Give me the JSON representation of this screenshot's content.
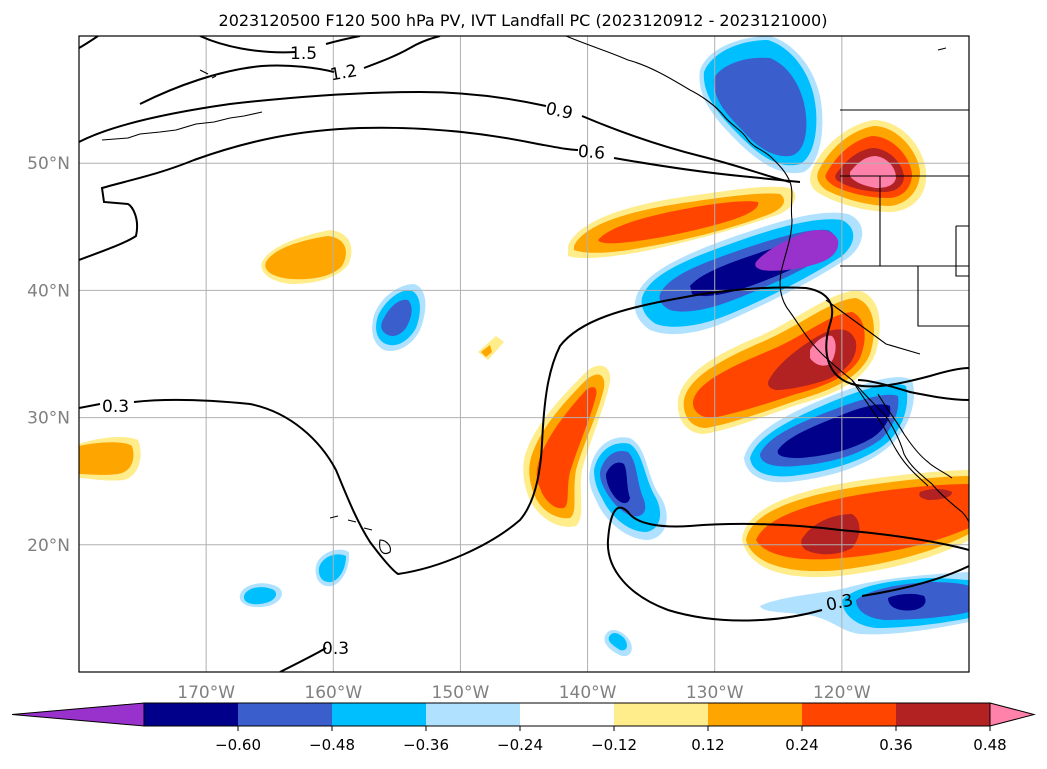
{
  "chart_data": {
    "type": "heatmap",
    "title": "2023120500 F120 500 hPa PV, IVT Landfall PC (2023120912 - 2023121000)",
    "x_axis": {
      "ticks": [
        -170,
        -160,
        -150,
        -140,
        -130,
        -120
      ],
      "tick_labels": [
        "170°W",
        "160°W",
        "150°W",
        "140°W",
        "130°W",
        "120°W"
      ],
      "range": [
        -180,
        -110
      ]
    },
    "y_axis": {
      "ticks": [
        20,
        30,
        40,
        50
      ],
      "tick_labels": [
        "20°N",
        "30°N",
        "40°N",
        "50°N"
      ],
      "range": [
        10,
        60
      ]
    },
    "grid": true,
    "colorbar": {
      "orientation": "horizontal",
      "extend": "both",
      "levels": [
        -0.6,
        -0.48,
        -0.36,
        -0.24,
        -0.12,
        0.12,
        0.24,
        0.36,
        0.48,
        0.6
      ],
      "tick_labels": [
        "−0.60",
        "−0.48",
        "−0.36",
        "−0.24",
        "−0.12",
        "0.12",
        "0.24",
        "0.36",
        "0.48",
        "0.60"
      ],
      "colors": [
        "#9932cc",
        "#00008b",
        "#3a5fcd",
        "#00bfff",
        "#b0e2ff",
        "#ffffff",
        "#ffec8b",
        "#ffa500",
        "#ff4500",
        "#b22222",
        "#ff82ab"
      ]
    },
    "contour_labels": [
      {
        "value": 1.5,
        "text": "1.5"
      },
      {
        "value": 1.2,
        "text": "1.2"
      },
      {
        "value": 0.9,
        "text": "0.9"
      },
      {
        "value": 0.6,
        "text": "0.6"
      },
      {
        "value": 0.3,
        "text": "0.3"
      },
      {
        "value": 0.3,
        "text": "0.3"
      },
      {
        "value": 0.3,
        "text": "0.3"
      }
    ],
    "anomaly_features": [
      {
        "lon": -168,
        "lat": 15.9,
        "value": -0.3
      },
      {
        "lon": -162,
        "lat": 18.0,
        "value": -0.28
      },
      {
        "lon": -171,
        "lat": 42.1,
        "value": 0.27
      },
      {
        "lon": -176,
        "lat": 26.9,
        "value": 0.28
      },
      {
        "lon": -156,
        "lat": 37.6,
        "value": -0.4
      },
      {
        "lon": -152,
        "lat": 35.5,
        "value": 0.25
      },
      {
        "lon": -143,
        "lat": 27.5,
        "value": 0.4
      },
      {
        "lon": -142,
        "lat": 24.5,
        "value": -0.48
      },
      {
        "lon": -136,
        "lat": 12.8,
        "value": -0.28
      },
      {
        "lon": -129,
        "lat": 44.3,
        "value": 0.4
      },
      {
        "lon": -128,
        "lat": 41.0,
        "value": -0.6
      },
      {
        "lon": -124,
        "lat": 54.0,
        "value": -0.45
      },
      {
        "lon": -118,
        "lat": 49.0,
        "value": 0.65
      },
      {
        "lon": -128,
        "lat": 33.5,
        "value": 0.65
      },
      {
        "lon": -121,
        "lat": 28.5,
        "value": -0.52
      },
      {
        "lon": -118,
        "lat": 21.0,
        "value": 0.5
      },
      {
        "lon": -114,
        "lat": 15.8,
        "value": -0.52
      }
    ]
  }
}
